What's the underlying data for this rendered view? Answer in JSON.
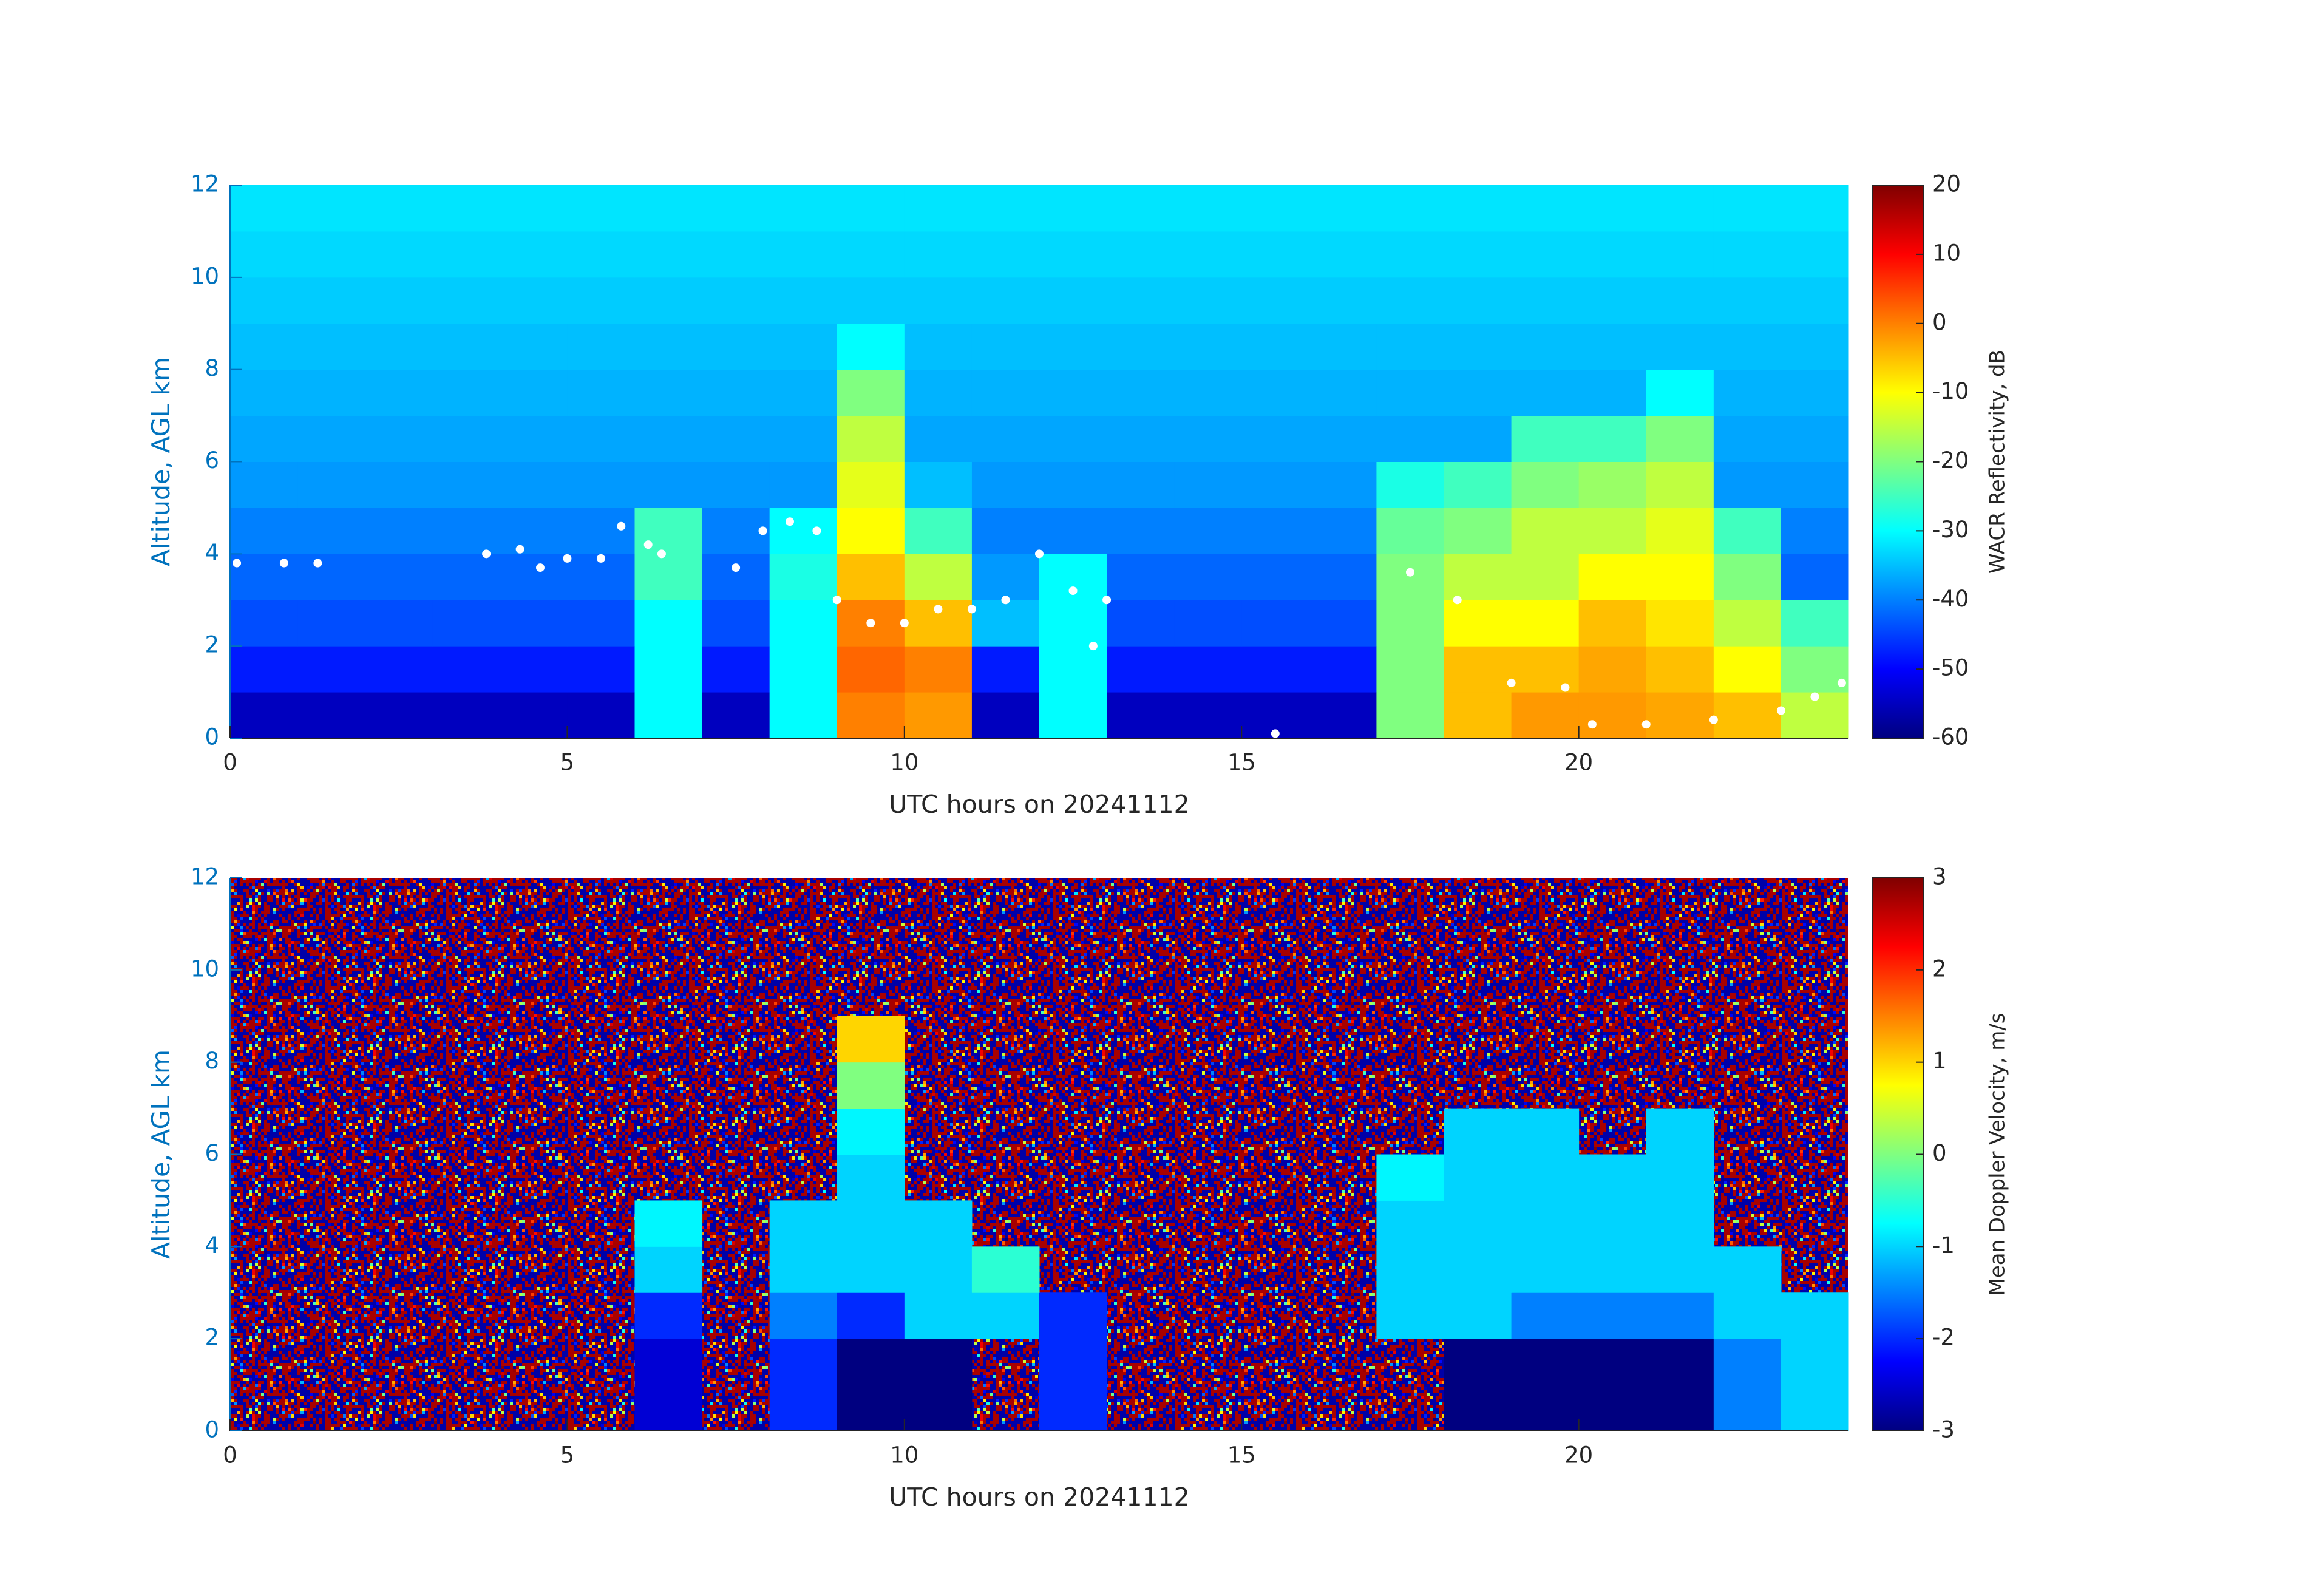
{
  "chart_data": [
    {
      "type": "heatmap",
      "colormap": "jet",
      "xlabel": "UTC hours on 20241112",
      "ylabel": "Altitude, AGL km",
      "xlim": [
        0,
        24
      ],
      "xticks": [
        0,
        5,
        10,
        15,
        20
      ],
      "ylim": [
        0,
        12
      ],
      "yticks": [
        0,
        2,
        4,
        6,
        8,
        10,
        12
      ],
      "x": [
        0.5,
        1.5,
        2.5,
        3.5,
        4.5,
        5.5,
        6.5,
        7.5,
        8.5,
        9.5,
        10.5,
        11.5,
        12.5,
        13.5,
        14.5,
        15.5,
        16.5,
        17.5,
        18.5,
        19.5,
        20.5,
        21.5,
        22.5,
        23.5
      ],
      "y": [
        0.5,
        1.5,
        2.5,
        3.5,
        4.5,
        5.5,
        6.5,
        7.5,
        8.5,
        9.5,
        10.5,
        11.5
      ],
      "values": [
        [
          -55,
          -55,
          -55,
          -55,
          -55,
          -55,
          -30,
          -55,
          -30,
          0,
          -2,
          -55,
          -30,
          -55,
          -55,
          -55,
          -55,
          -20,
          -5,
          -2,
          -2,
          -3,
          -5,
          -15
        ],
        [
          -48,
          -48,
          -48,
          -48,
          -48,
          -48,
          -30,
          -48,
          -30,
          2,
          0,
          -48,
          -30,
          -48,
          -48,
          -48,
          -48,
          -20,
          -5,
          -5,
          -3,
          -5,
          -10,
          -20
        ],
        [
          -44,
          -44,
          -44,
          -44,
          -44,
          -44,
          -30,
          -44,
          -30,
          0,
          -5,
          -35,
          -30,
          -44,
          -44,
          -44,
          -44,
          -20,
          -10,
          -10,
          -5,
          -8,
          -15,
          -25
        ],
        [
          -42,
          -42,
          -42,
          -42,
          -42,
          -42,
          -25,
          -42,
          -28,
          -5,
          -15,
          -38,
          -30,
          -42,
          -42,
          -42,
          -42,
          -20,
          -15,
          -15,
          -10,
          -10,
          -20,
          -42
        ],
        [
          -40,
          -40,
          -40,
          -40,
          -40,
          -40,
          -25,
          -40,
          -30,
          -10,
          -25,
          -40,
          -40,
          -40,
          -40,
          -40,
          -40,
          -22,
          -20,
          -15,
          -15,
          -12,
          -25,
          -40
        ],
        [
          -38,
          -38,
          -38,
          -38,
          -38,
          -38,
          -38,
          -38,
          -38,
          -12,
          -35,
          -38,
          -38,
          -38,
          -38,
          -38,
          -38,
          -28,
          -25,
          -20,
          -18,
          -15,
          -38,
          -38
        ],
        [
          -37,
          -37,
          -37,
          -37,
          -37,
          -37,
          -37,
          -37,
          -37,
          -15,
          -37,
          -37,
          -37,
          -37,
          -37,
          -37,
          -37,
          -37,
          -37,
          -25,
          -25,
          -20,
          -37,
          -37
        ],
        [
          -36,
          -36,
          -36,
          -36,
          -36,
          -36,
          -36,
          -36,
          -36,
          -20,
          -36,
          -36,
          -36,
          -36,
          -36,
          -36,
          -36,
          -36,
          -36,
          -36,
          -36,
          -30,
          -36,
          -36
        ],
        [
          -35,
          -35,
          -35,
          -35,
          -35,
          -35,
          -35,
          -35,
          -35,
          -30,
          -35,
          -35,
          -35,
          -35,
          -35,
          -35,
          -35,
          -35,
          -35,
          -35,
          -35,
          -35,
          -35,
          -35
        ],
        [
          -34,
          -34,
          -34,
          -34,
          -34,
          -34,
          -34,
          -34,
          -34,
          -34,
          -34,
          -34,
          -34,
          -34,
          -34,
          -34,
          -34,
          -34,
          -34,
          -34,
          -34,
          -34,
          -34,
          -34
        ],
        [
          -33,
          -33,
          -33,
          -33,
          -33,
          -33,
          -33,
          -33,
          -33,
          -33,
          -33,
          -33,
          -33,
          -33,
          -33,
          -33,
          -33,
          -33,
          -33,
          -33,
          -33,
          -33,
          -33,
          -33
        ],
        [
          -32,
          -32,
          -32,
          -32,
          -32,
          -32,
          -32,
          -32,
          -32,
          -32,
          -32,
          -32,
          -32,
          -32,
          -32,
          -32,
          -32,
          -32,
          -32,
          -32,
          -32,
          -32,
          -32,
          -32
        ]
      ],
      "colorbar": {
        "label": "WACR Reflectivity, dB",
        "lim": [
          -60,
          20
        ],
        "ticks": [
          -60,
          -50,
          -40,
          -30,
          -20,
          -10,
          0,
          10,
          20
        ]
      },
      "points": {
        "color": "#ffffff",
        "x": [
          0.1,
          0.8,
          1.3,
          3.8,
          4.3,
          4.6,
          5.0,
          5.5,
          5.8,
          6.2,
          6.4,
          7.5,
          7.9,
          8.3,
          8.7,
          9.0,
          9.5,
          10.0,
          10.5,
          11.0,
          11.5,
          12.0,
          12.5,
          12.8,
          13.0,
          15.5,
          17.5,
          18.2,
          19.0,
          19.8,
          20.2,
          21.0,
          22.0,
          23.0,
          23.5,
          23.9
        ],
        "y": [
          3.8,
          3.8,
          3.8,
          4.0,
          4.1,
          3.7,
          3.9,
          3.9,
          4.6,
          4.2,
          4.0,
          3.7,
          4.5,
          4.7,
          4.5,
          3.0,
          2.5,
          2.5,
          2.8,
          2.8,
          3.0,
          4.0,
          3.2,
          2.0,
          3.0,
          0.1,
          3.6,
          3.0,
          1.2,
          1.1,
          0.3,
          0.3,
          0.4,
          0.6,
          0.9,
          1.2
        ]
      }
    },
    {
      "type": "heatmap",
      "colormap": "jet",
      "xlabel": "UTC hours on 20241112",
      "ylabel": "Altitude, AGL km",
      "xlim": [
        0,
        24
      ],
      "xticks": [
        0,
        5,
        10,
        15,
        20
      ],
      "ylim": [
        0,
        12
      ],
      "yticks": [
        0,
        2,
        4,
        6,
        8,
        10,
        12
      ],
      "x": [
        0.5,
        1.5,
        2.5,
        3.5,
        4.5,
        5.5,
        6.5,
        7.5,
        8.5,
        9.5,
        10.5,
        11.5,
        12.5,
        13.5,
        14.5,
        15.5,
        16.5,
        17.5,
        18.5,
        19.5,
        20.5,
        21.5,
        22.5,
        23.5
      ],
      "y": [
        0.5,
        1.5,
        2.5,
        3.5,
        4.5,
        5.5,
        6.5,
        7.5,
        8.5,
        9.5,
        10.5,
        11.5
      ],
      "values": [
        [
          null,
          null,
          null,
          null,
          null,
          null,
          -2.5,
          null,
          -2,
          -3,
          -3,
          null,
          -2,
          null,
          null,
          null,
          null,
          null,
          -3,
          -3,
          -3,
          -3,
          -1.5,
          -1
        ],
        [
          null,
          null,
          null,
          null,
          null,
          null,
          -2.5,
          null,
          -2,
          -3,
          -3,
          null,
          -2,
          null,
          null,
          null,
          null,
          null,
          -3,
          -3,
          -3,
          -3,
          -1.5,
          -1
        ],
        [
          null,
          null,
          null,
          null,
          null,
          null,
          -2,
          null,
          -1.5,
          -2,
          -1,
          -1,
          -2,
          null,
          null,
          null,
          null,
          -1,
          -1,
          -1.5,
          -1.5,
          -1.5,
          -1,
          -1
        ],
        [
          null,
          null,
          null,
          null,
          null,
          null,
          -1,
          null,
          -1,
          -1,
          -1,
          -0.5,
          null,
          null,
          null,
          null,
          null,
          -1,
          -1,
          -1,
          -1,
          -1,
          -1,
          null
        ],
        [
          null,
          null,
          null,
          null,
          null,
          null,
          -0.8,
          null,
          -1,
          -1,
          -1,
          null,
          null,
          null,
          null,
          null,
          null,
          -1,
          -1,
          -1,
          -1,
          -1,
          null,
          null
        ],
        [
          null,
          null,
          null,
          null,
          null,
          null,
          null,
          null,
          null,
          -1,
          null,
          null,
          null,
          null,
          null,
          null,
          null,
          -0.8,
          -1,
          -1,
          -1,
          -1,
          null,
          null
        ],
        [
          null,
          null,
          null,
          null,
          null,
          null,
          null,
          null,
          null,
          -0.8,
          null,
          null,
          null,
          null,
          null,
          null,
          null,
          null,
          -1,
          -1,
          null,
          -1,
          null,
          null
        ],
        [
          null,
          null,
          null,
          null,
          null,
          null,
          null,
          null,
          null,
          0,
          null,
          null,
          null,
          null,
          null,
          null,
          null,
          null,
          null,
          null,
          null,
          null,
          null,
          null
        ],
        [
          null,
          null,
          null,
          null,
          null,
          null,
          null,
          null,
          null,
          1,
          null,
          null,
          null,
          null,
          null,
          null,
          null,
          null,
          null,
          null,
          null,
          null,
          null,
          null
        ],
        [
          null,
          null,
          null,
          null,
          null,
          null,
          null,
          null,
          null,
          null,
          null,
          null,
          null,
          null,
          null,
          null,
          null,
          null,
          null,
          null,
          null,
          null,
          null,
          null
        ],
        [
          null,
          null,
          null,
          null,
          null,
          null,
          null,
          null,
          null,
          null,
          null,
          null,
          null,
          null,
          null,
          null,
          null,
          null,
          null,
          null,
          null,
          null,
          null,
          null
        ],
        [
          null,
          null,
          null,
          null,
          null,
          null,
          null,
          null,
          null,
          null,
          null,
          null,
          null,
          null,
          null,
          null,
          null,
          null,
          null,
          null,
          null,
          null,
          null,
          null
        ]
      ],
      "colorbar": {
        "label": "Mean Doppler Velocity, m/s",
        "lim": [
          -3,
          3
        ],
        "ticks": [
          -3,
          -2,
          -1,
          0,
          1,
          2,
          3
        ]
      }
    }
  ]
}
